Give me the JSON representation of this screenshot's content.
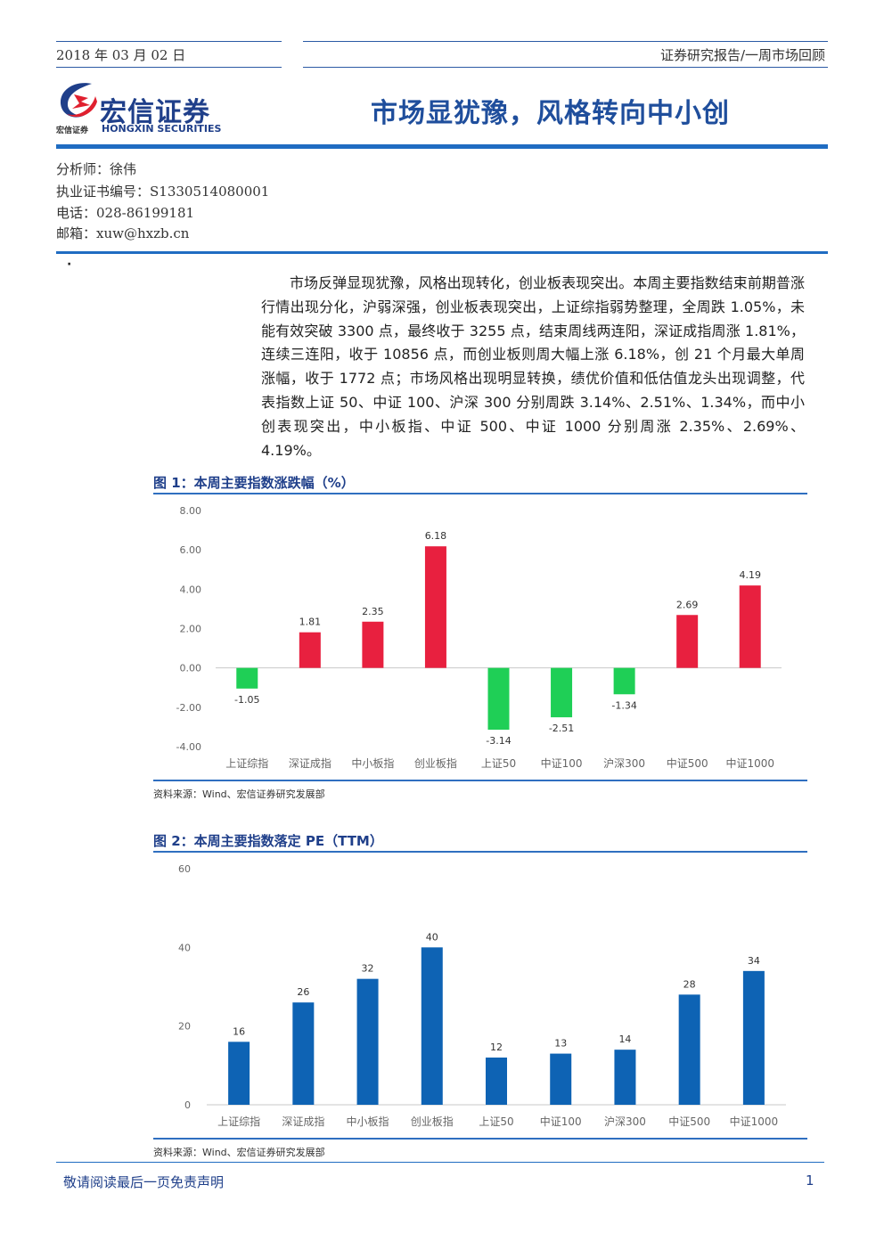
{
  "header": {
    "date": "2018 年 03 月 02 日",
    "report_type": "证券研究报告/一周市场回顾",
    "logo_cn": "宏信证券",
    "logo_sub_cn": "宏信证券",
    "logo_sub_en": "HONGXIN SECURITIES",
    "title": "市场显犹豫，风格转向中小创"
  },
  "analyst": {
    "name_line": "分析师：徐伟",
    "license_line": "执业证书编号：S1330514080001",
    "phone_line": "电话：028-86199181",
    "email_line": "邮箱：xuw@hxzb.cn"
  },
  "bullet": "·",
  "summary": "市场反弹显现犹豫，风格出现转化，创业板表现突出。本周主要指数结束前期普涨行情出现分化，沪弱深强，创业板表现突出，上证综指弱势整理，全周跌 1.05%，未能有效突破 3300 点，最终收于 3255 点，结束周线两连阳，深证成指周涨 1.81%，连续三连阳，收于 10856 点，而创业板则周大幅上涨 6.18%，创 21 个月最大单周涨幅，收于 1772 点；市场风格出现明显转换，绩优价值和低估值龙头出现调整，代表指数上证 50、中证 100、沪深 300 分别周跌 3.14%、2.51%、1.34%，而中小创表现突出，中小板指、中证 500、中证 1000 分别周涨 2.35%、2.69%、4.19%。",
  "figures": [
    {
      "title": "图 1：本周主要指数涨跌幅（%）",
      "source": "资料来源：Wind、宏信证券研究发展部"
    },
    {
      "title": "图 2：本周主要指数落定 PE（TTM）",
      "source": "资料来源：Wind、宏信证券研究发展部"
    }
  ],
  "chart_data": [
    {
      "type": "bar",
      "categories": [
        "上证综指",
        "深证成指",
        "中小板指",
        "创业板指",
        "上证50",
        "中证100",
        "沪深300",
        "中证500",
        "中证1000"
      ],
      "values": [
        -1.05,
        1.81,
        2.35,
        6.18,
        -3.14,
        -2.51,
        -1.34,
        2.69,
        4.19
      ],
      "value_labels": [
        "-1.05",
        "1.81",
        "2.35",
        "6.18",
        "-3.14",
        "-2.51",
        "-1.34",
        "2.69",
        "4.19"
      ],
      "ylim": [
        -4,
        8
      ],
      "yticks": [
        "8.00",
        "6.00",
        "4.00",
        "2.00",
        "0.00",
        "-2.00",
        "-4.00"
      ],
      "ytick_values": [
        8,
        6,
        4,
        2,
        0,
        -2,
        -4
      ],
      "colors": {
        "positive": "#e8203f",
        "negative": "#1fcf56",
        "axis": "#c8c8c8",
        "label": "#333333",
        "ticklabel": "#666666"
      }
    },
    {
      "type": "bar",
      "categories": [
        "上证综指",
        "深证成指",
        "中小板指",
        "创业板指",
        "上证50",
        "中证100",
        "沪深300",
        "中证500",
        "中证1000"
      ],
      "values": [
        16,
        26,
        32,
        40,
        12,
        13,
        14,
        28,
        34
      ],
      "value_labels": [
        "16",
        "26",
        "32",
        "40",
        "12",
        "13",
        "14",
        "28",
        "34"
      ],
      "ylim": [
        0,
        60
      ],
      "yticks": [
        "60",
        "40",
        "20",
        "0"
      ],
      "ytick_values": [
        60,
        40,
        20,
        0
      ],
      "colors": {
        "bar": "#0e63b4",
        "axis": "#c8c8c8",
        "label": "#333333",
        "ticklabel": "#666666"
      }
    }
  ],
  "footer": {
    "disclaimer": "敬请阅读最后一页免责声明",
    "page_number": "1"
  }
}
